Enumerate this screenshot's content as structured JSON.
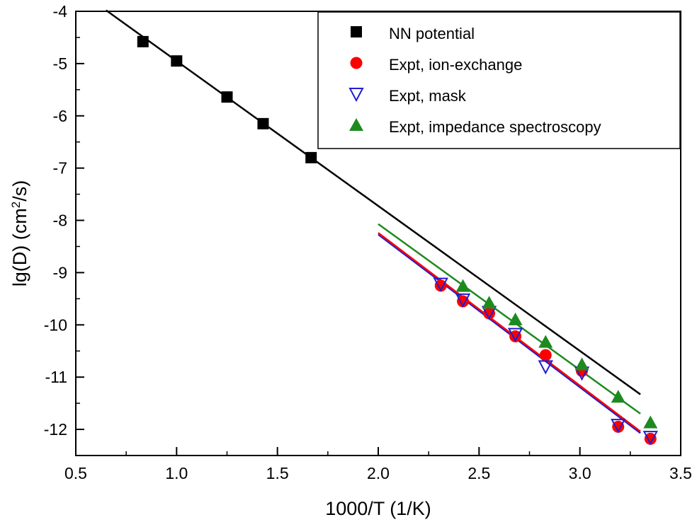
{
  "chart_data": {
    "type": "scatter",
    "xlabel": "1000/T (1/K)",
    "ylabel": {
      "prefix": "lg(D) (cm",
      "sup": "2",
      "suffix": "/s)"
    },
    "xlim": [
      0.5,
      3.5
    ],
    "ylim": [
      -12.5,
      -4
    ],
    "x_ticks": [
      "0.5",
      "1.0",
      "1.5",
      "2.0",
      "2.5",
      "3.0",
      "3.5"
    ],
    "y_ticks": [
      "-4",
      "-5",
      "-6",
      "-7",
      "-8",
      "-9",
      "-10",
      "-11",
      "-12"
    ],
    "grid": false,
    "legend_position": "top-right",
    "series": [
      {
        "name": "NN potential",
        "marker": "square",
        "color": "#000000",
        "x": [
          0.833,
          1.0,
          1.25,
          1.429,
          1.667
        ],
        "y": [
          -4.58,
          -4.95,
          -5.64,
          -6.15,
          -6.8
        ]
      },
      {
        "name": "Expt, ion-exchange",
        "marker": "circle",
        "color": "#ff0000",
        "x": [
          2.31,
          2.42,
          2.55,
          2.68,
          2.83,
          3.01,
          3.19,
          3.35
        ],
        "y": [
          -9.25,
          -9.55,
          -9.78,
          -10.22,
          -10.58,
          -10.88,
          -11.95,
          -12.18
        ]
      },
      {
        "name": "Expt, mask",
        "marker": "triangle-down-open",
        "color": "#1e1ed2",
        "x": [
          2.31,
          2.42,
          2.55,
          2.68,
          2.83,
          3.01,
          3.19,
          3.35
        ],
        "y": [
          -9.22,
          -9.52,
          -9.76,
          -10.18,
          -10.8,
          -10.92,
          -11.92,
          -12.15
        ]
      },
      {
        "name": "Expt, impedance spectroscopy",
        "marker": "triangle-up",
        "color": "#1e8a1e",
        "x": [
          2.42,
          2.55,
          2.68,
          2.83,
          3.01,
          3.19,
          3.35
        ],
        "y": [
          -9.26,
          -9.58,
          -9.9,
          -10.33,
          -10.76,
          -11.38,
          -11.87
        ]
      }
    ],
    "fit_lines": [
      {
        "color": "#000000",
        "x": [
          0.65,
          3.3
        ],
        "y": [
          -3.98,
          -11.33
        ]
      },
      {
        "color": "#1e8a1e",
        "x": [
          2.0,
          3.3
        ],
        "y": [
          -8.07,
          -11.7
        ]
      },
      {
        "color": "#1e1ed2",
        "x": [
          2.0,
          3.3
        ],
        "y": [
          -8.27,
          -12.07
        ]
      },
      {
        "color": "#ff0000",
        "x": [
          2.0,
          3.3
        ],
        "y": [
          -8.24,
          -12.04
        ]
      }
    ]
  }
}
